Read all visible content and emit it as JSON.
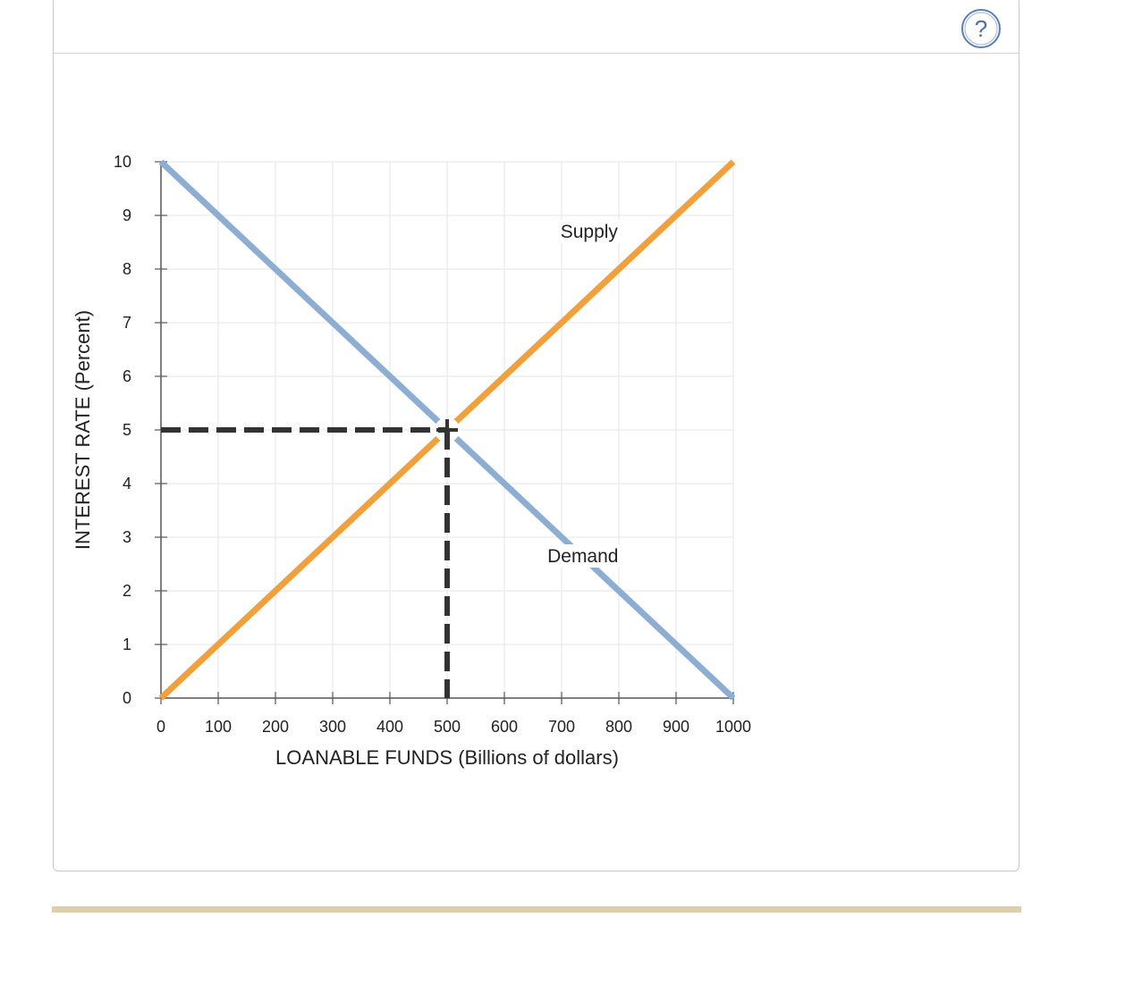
{
  "help": {
    "label": "?",
    "icon": "help-icon",
    "color": "#5b7fb0"
  },
  "chart_data": {
    "type": "line",
    "xlabel": "LOANABLE FUNDS (Billions of dollars)",
    "ylabel": "INTEREST RATE (Percent)",
    "xlim": [
      0,
      1000
    ],
    "ylim": [
      0,
      10
    ],
    "xticks": [
      "0",
      "100",
      "200",
      "300",
      "400",
      "500",
      "600",
      "700",
      "800",
      "900",
      "1000"
    ],
    "yticks": [
      "0",
      "1",
      "2",
      "3",
      "4",
      "5",
      "6",
      "7",
      "8",
      "9",
      "10"
    ],
    "grid": true,
    "series": [
      {
        "name": "Supply",
        "color": "#f0a03c",
        "x": [
          0,
          1000
        ],
        "y": [
          0,
          10
        ]
      },
      {
        "name": "Demand",
        "color": "#8daed2",
        "x": [
          0,
          1000
        ],
        "y": [
          10,
          0
        ]
      }
    ],
    "equilibrium": {
      "x": 500,
      "y": 5,
      "color": "#333333"
    }
  }
}
